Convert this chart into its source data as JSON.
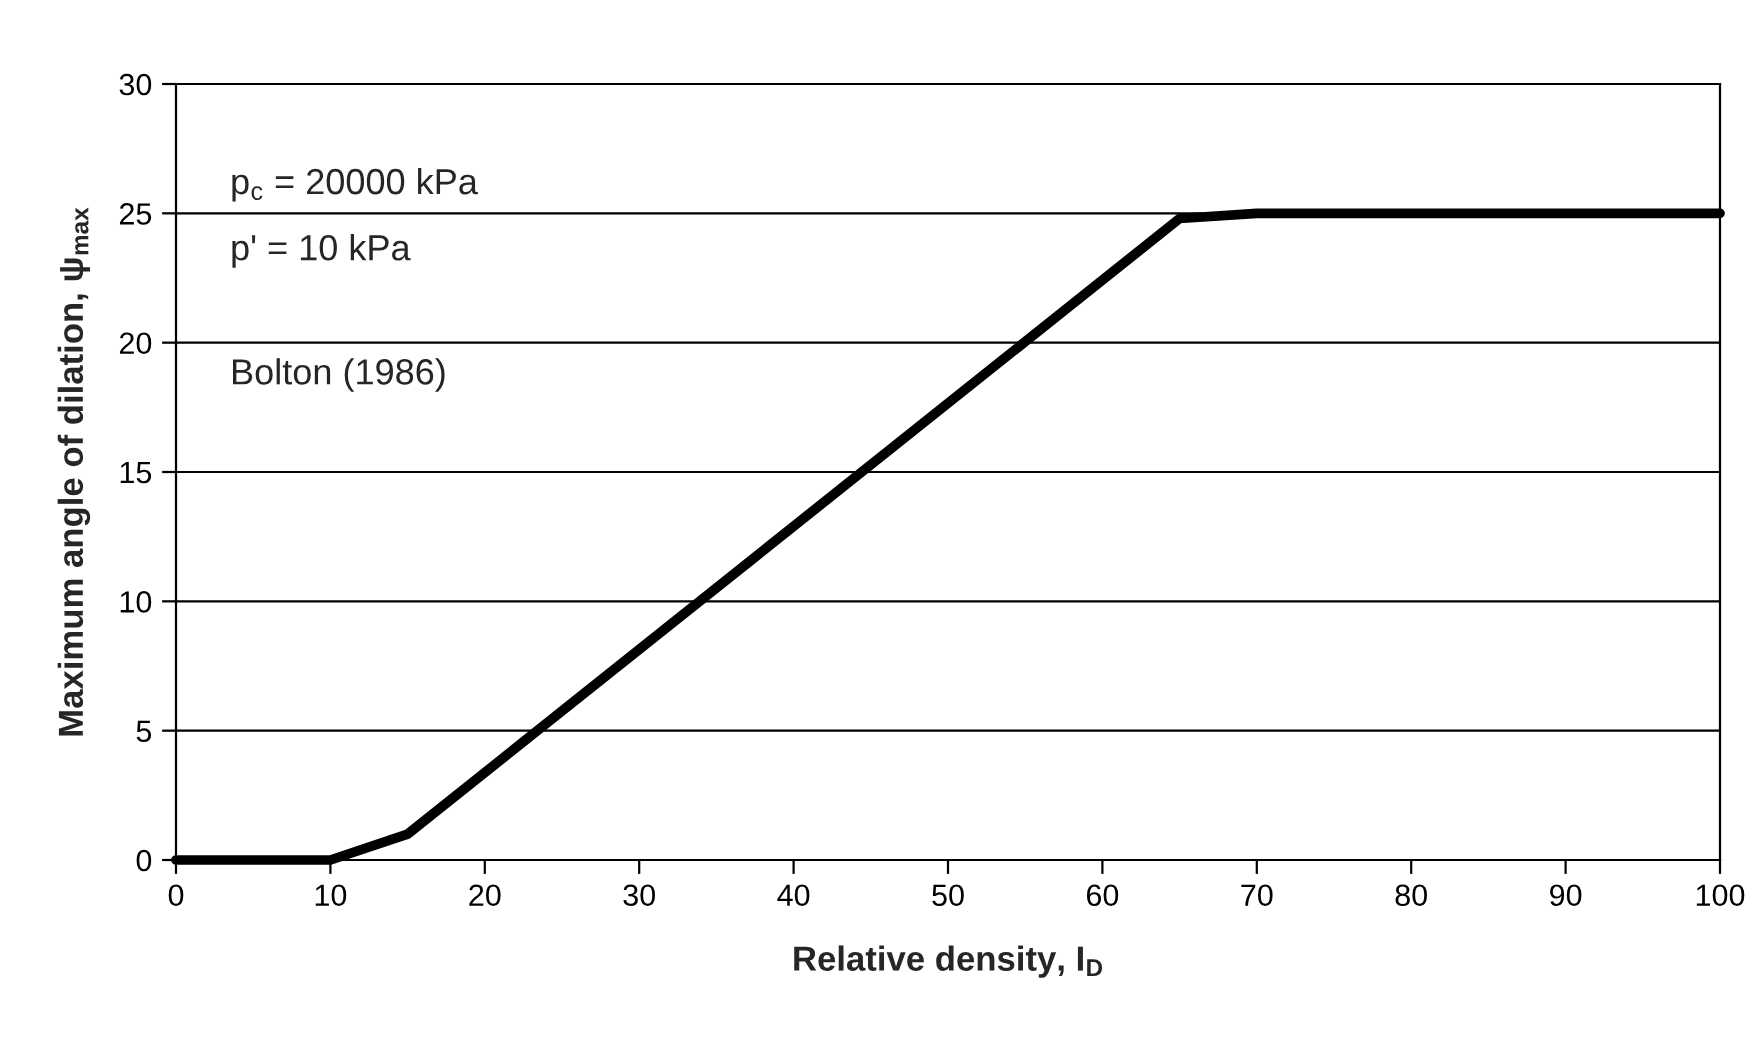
{
  "chart_data": {
    "type": "line",
    "xlabel": "Relative density, I$_{D}$",
    "ylabel": "Maximum angle of dilation, ψ$_{max}$",
    "x": [
      0,
      10,
      15,
      65,
      70,
      100
    ],
    "series": [
      {
        "color": "#000000",
        "values": [
          0,
          0,
          1,
          24.8,
          25,
          25
        ]
      }
    ],
    "xlim": [
      0,
      100
    ],
    "xticks": [
      0,
      10,
      20,
      30,
      40,
      50,
      60,
      70,
      80,
      90,
      100
    ],
    "ylim": [
      0,
      30
    ],
    "yticks": [
      0,
      5,
      10,
      15,
      20,
      25,
      30
    ],
    "grid": "y",
    "marker": "none",
    "line_style": "solid",
    "annotations": [
      "p$_{c}$ = 20000 kPa",
      "p' = 10 kPa",
      "Bolton (1986)"
    ]
  }
}
